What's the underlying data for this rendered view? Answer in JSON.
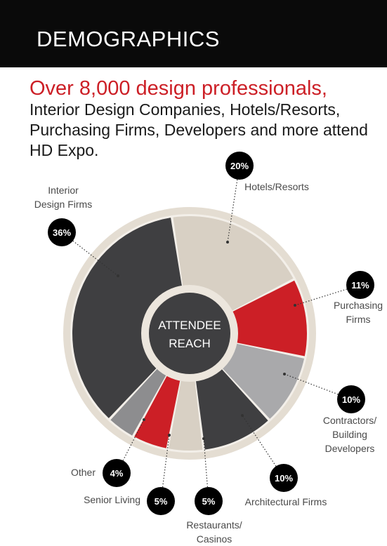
{
  "header": {
    "title": "DEMOGRAPHICS"
  },
  "headline": {
    "highlight": "Over 8,000 design professionals,",
    "body": "Interior Design Companies, Hotels/Resorts, Purchasing Firms, Developers and more attend HD Expo."
  },
  "chart_data": {
    "type": "pie",
    "center_label": [
      "ATTENDEE",
      "REACH"
    ],
    "slices": [
      {
        "label": "Interior Design Firms",
        "label_lines": [
          "Interior",
          "Design Firms"
        ],
        "value": 36,
        "value_label": "36%",
        "color": "#3f3f41"
      },
      {
        "label": "Hotels/Resorts",
        "label_lines": [
          "Hotels/Resorts"
        ],
        "value": 20,
        "value_label": "20%",
        "color": "#d8d0c4"
      },
      {
        "label": "Purchasing Firms",
        "label_lines": [
          "Purchasing",
          "Firms"
        ],
        "value": 11,
        "value_label": "11%",
        "color": "#cc1f26"
      },
      {
        "label": "Contractors/ Building Developers",
        "label_lines": [
          "Contractors/",
          "Building",
          "Developers"
        ],
        "value": 10,
        "value_label": "10%",
        "color": "#a9a9ab"
      },
      {
        "label": "Architectural Firms",
        "label_lines": [
          "Architectural Firms"
        ],
        "value": 10,
        "value_label": "10%",
        "color": "#3f3f41"
      },
      {
        "label": "Restaurants/ Casinos",
        "label_lines": [
          "Restaurants/",
          "Casinos"
        ],
        "value": 5,
        "value_label": "5%",
        "color": "#d8d0c4"
      },
      {
        "label": "Senior Living",
        "label_lines": [
          "Senior Living"
        ],
        "value": 5,
        "value_label": "5%",
        "color": "#cc1f26"
      },
      {
        "label": "Other",
        "label_lines": [
          "Other"
        ],
        "value": 4,
        "value_label": "4%",
        "color": "#8d8d8f"
      }
    ]
  }
}
